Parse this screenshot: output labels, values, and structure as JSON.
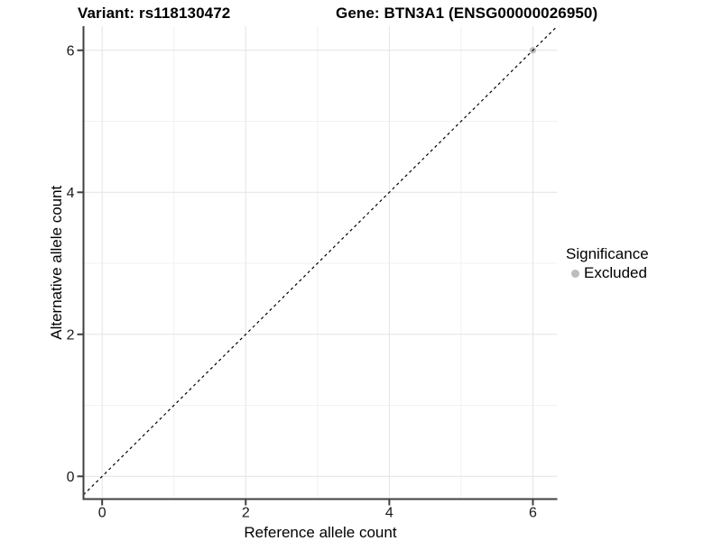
{
  "chart_data": {
    "type": "scatter",
    "title_left": "Variant: rs118130472",
    "title_right": "Gene: BTN3A1 (ENSG00000026950)",
    "xlabel": "Reference allele count",
    "ylabel": "Alternative allele count",
    "xlim": [
      -0.26,
      6.34
    ],
    "ylim": [
      -0.32,
      6.34
    ],
    "x_ticks": [
      0,
      2,
      4,
      6
    ],
    "y_ticks": [
      0,
      2,
      4,
      6
    ],
    "x_tick_labels": [
      "0",
      "2",
      "4",
      "6"
    ],
    "y_tick_labels": [
      "0",
      "2",
      "4",
      "6"
    ],
    "x_minor_ticks": [
      1,
      3,
      5
    ],
    "y_minor_ticks": [
      1,
      3,
      5
    ],
    "grid": "on",
    "legend_position": "right",
    "legend": {
      "title": "Significance",
      "items": [
        {
          "label": "Excluded",
          "color": "#bdbdbd"
        }
      ]
    },
    "series": [
      {
        "name": "Excluded",
        "type": "scatter",
        "color": "#bdbdbd",
        "points": [
          {
            "x": 6,
            "y": 6
          }
        ]
      }
    ],
    "reference_line": {
      "kind": "identity",
      "equation": "y = x",
      "style": "dashed",
      "color": "#000000"
    },
    "theme": {
      "background": "#ffffff",
      "axis_line_color": "#404040",
      "tick_color": "#404040",
      "tick_label_color": "#1a1a1a",
      "axis_title_color": "#000000",
      "grid_major_color": "#e4e4e4",
      "grid_minor_color": "#f1f1f1"
    }
  }
}
